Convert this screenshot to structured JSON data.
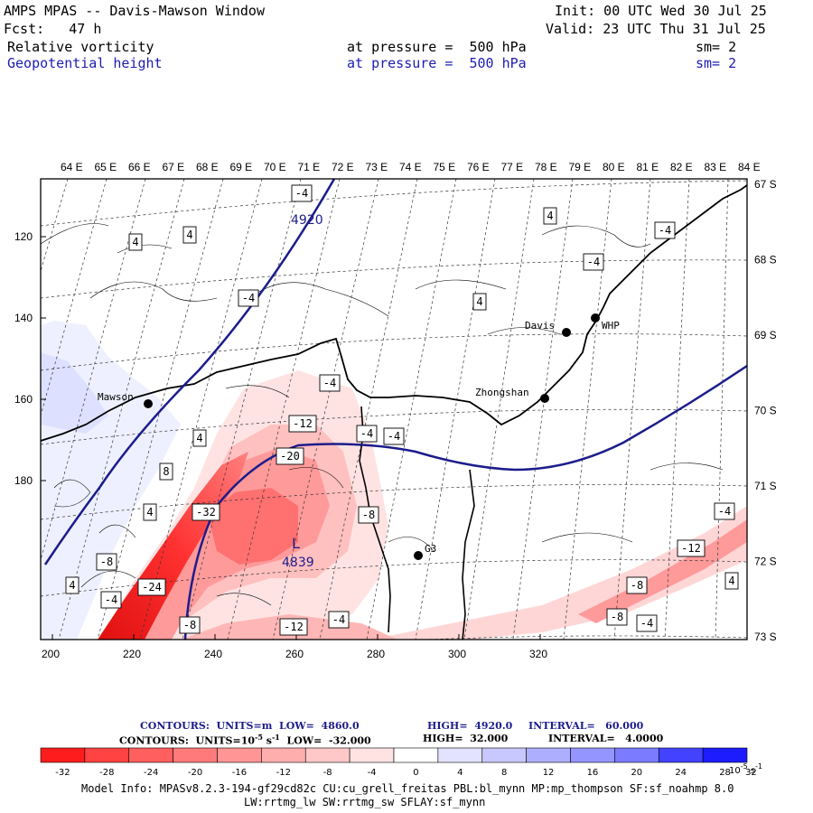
{
  "header": {
    "line1_left": "AMPS MPAS -- Davis-Mawson Window",
    "line1_right": "Init: 00 UTC Wed 30 Jul 25",
    "line2_left": "Fcst:   47 h",
    "line2_right": "Valid: 23 UTC Thu 31 Jul 25",
    "field1": {
      "name": "Relative vorticity",
      "level": "at pressure =  500 hPa",
      "smooth": "sm= 2"
    },
    "field2": {
      "name": "Geopotential height",
      "level": "at pressure =  500 hPa",
      "smooth": "sm= 2"
    }
  },
  "map": {
    "lon_labels": [
      "64 E",
      "65 E",
      "66 E",
      "67 E",
      "68 E",
      "69 E",
      "70 E",
      "71 E",
      "72 E",
      "73 E",
      "74 E",
      "75 E",
      "76 E",
      "77 E",
      "78 E",
      "79 E",
      "80 E",
      "81 E",
      "82 E",
      "83 E",
      "84 E"
    ],
    "lat_labels": [
      "67 S",
      "68 S",
      "69 S",
      "70 S",
      "71 S",
      "72 S",
      "73 S"
    ],
    "x_ticks": [
      "200",
      "220",
      "240",
      "260",
      "280",
      "300",
      "320"
    ],
    "y_ticks": [
      "120",
      "140",
      "160",
      "180"
    ],
    "stations": [
      {
        "name": "Mawson"
      },
      {
        "name": "Davis"
      },
      {
        "name": "WHP"
      },
      {
        "name": "Zhongshan"
      },
      {
        "name": "G3"
      }
    ],
    "height_labels": [
      "4920"
    ],
    "low_label": "L",
    "low_value": "4839",
    "vort_labels": [
      "-4",
      "4",
      "-4",
      "4",
      "4",
      "-4",
      "4",
      "-4",
      "-4",
      "-12",
      "-4",
      "-4",
      "4",
      "-20",
      "8",
      "-8",
      "-32",
      "-4",
      "-8",
      "4",
      "-12",
      "4",
      "-24",
      "-4",
      "-8",
      "-12",
      "-8",
      "-4",
      "-8",
      "-4",
      "4"
    ],
    "colors": {
      "neg_strong": "#ff1a1a",
      "pos": "#9a9ae8",
      "height_contour": "#1c1c8c",
      "coast": "#000000"
    }
  },
  "contour_info": {
    "line1_a": "CONTOURS:  UNITS=m  LOW=  4860.0",
    "line1_b": "HIGH=  4920.0",
    "line1_c": "INTERVAL=   60.000",
    "line2_a": "CONTOURS:  UNITS=10",
    "line2_exp": "-5",
    "line2_b": " s",
    "line2_exp2": "-1",
    "line2_c": "  LOW=  -32.000",
    "line2_d": "HIGH=  32.000",
    "line2_e": "INTERVAL=   4.0000"
  },
  "colorbar": {
    "labels": [
      "-32",
      "-28",
      "-24",
      "-20",
      "-16",
      "-12",
      "-8",
      "-4",
      "0",
      "4",
      "8",
      "12",
      "16",
      "20",
      "24",
      "28",
      "32"
    ],
    "units_base": "10",
    "units_exp": "-5",
    "units_s": " s",
    "units_s_exp": "-1",
    "colors": [
      "#ff1c1c",
      "#ff4242",
      "#ff5f5f",
      "#ff7b7b",
      "#ff9595",
      "#ffaeae",
      "#ffc8c8",
      "#ffe3e3",
      "#ffffff",
      "#ffffff",
      "#e3e3ff",
      "#c8c8ff",
      "#aeaeff",
      "#9595ff",
      "#7b7bff",
      "#4242ff",
      "#1c1cff"
    ]
  },
  "footer": {
    "line1": "Model Info: MPASv8.2.3-194-gf29cd82c CU:cu_grell_freitas PBL:bl_mynn MP:mp_thompson SF:sf_noahmp 8.0",
    "line2": "LW:rrtmg_lw SW:rrtmg_sw SFLAY:sf_mynn"
  }
}
